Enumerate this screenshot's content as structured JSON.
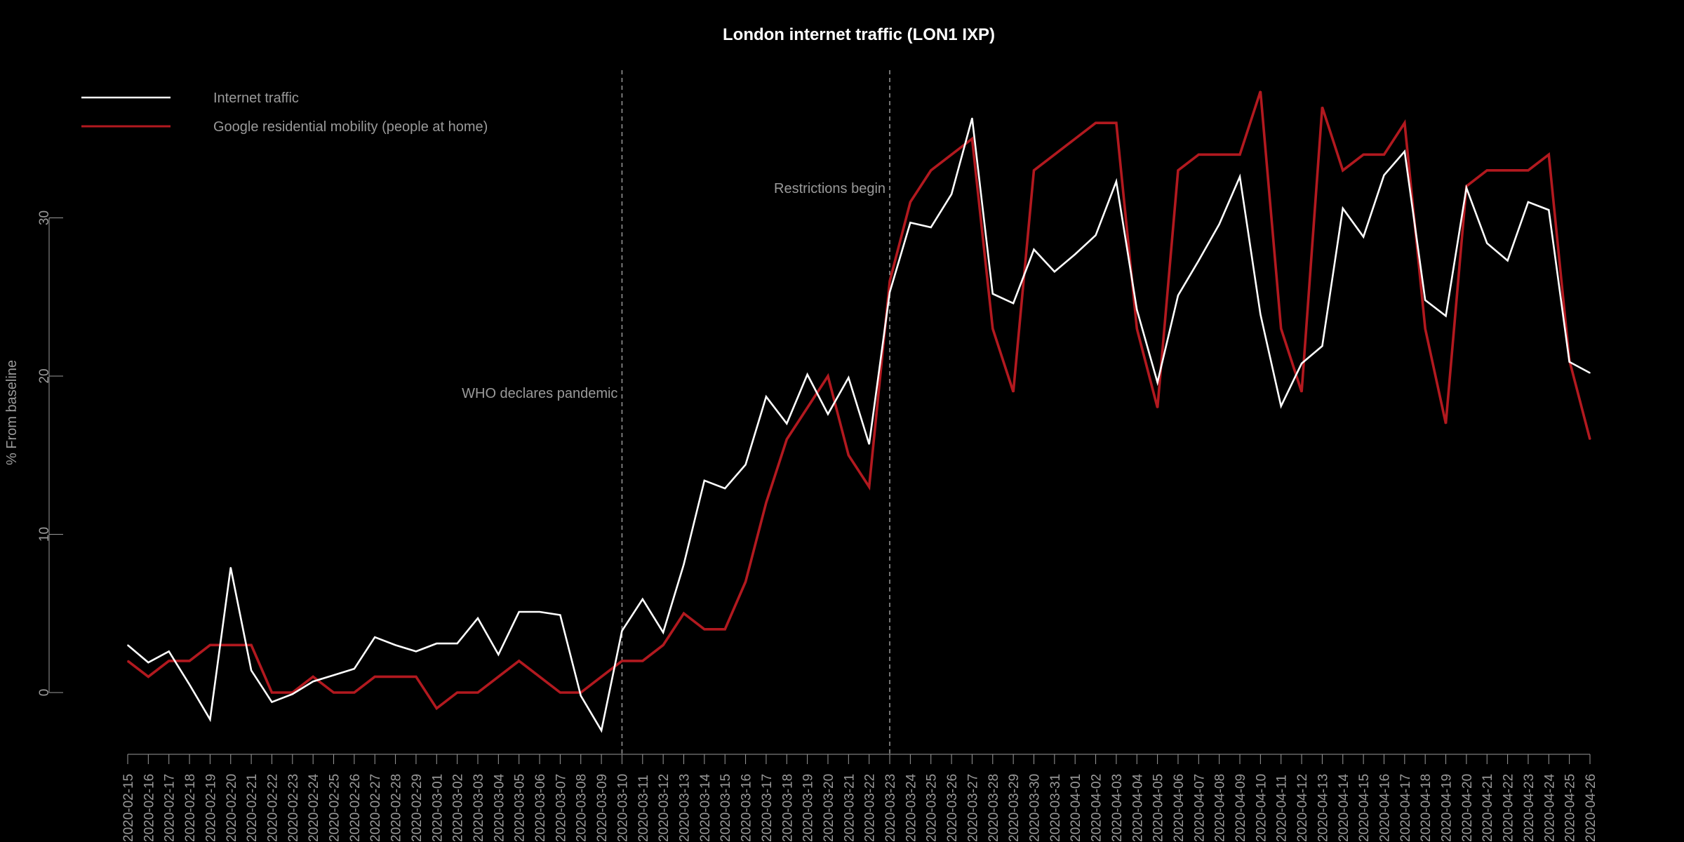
{
  "chart_data": {
    "type": "line",
    "title": "London internet traffic (LON1 IXP)",
    "xlabel": "",
    "ylabel": "% From baseline",
    "ylim": [
      -4.5,
      39
    ],
    "yticks": [
      0,
      10,
      20,
      30
    ],
    "grid": false,
    "legend_position": "top-left",
    "categories": [
      "2020-02-15",
      "2020-02-16",
      "2020-02-17",
      "2020-02-18",
      "2020-02-19",
      "2020-02-20",
      "2020-02-21",
      "2020-02-22",
      "2020-02-23",
      "2020-02-24",
      "2020-02-25",
      "2020-02-26",
      "2020-02-27",
      "2020-02-28",
      "2020-02-29",
      "2020-03-01",
      "2020-03-02",
      "2020-03-03",
      "2020-03-04",
      "2020-03-05",
      "2020-03-06",
      "2020-03-07",
      "2020-03-08",
      "2020-03-09",
      "2020-03-10",
      "2020-03-11",
      "2020-03-12",
      "2020-03-13",
      "2020-03-14",
      "2020-03-15",
      "2020-03-16",
      "2020-03-17",
      "2020-03-18",
      "2020-03-19",
      "2020-03-20",
      "2020-03-21",
      "2020-03-22",
      "2020-03-23",
      "2020-03-24",
      "2020-03-25",
      "2020-03-26",
      "2020-03-27",
      "2020-03-28",
      "2020-03-29",
      "2020-03-30",
      "2020-03-31",
      "2020-04-01",
      "2020-04-02",
      "2020-04-03",
      "2020-04-04",
      "2020-04-05",
      "2020-04-06",
      "2020-04-07",
      "2020-04-08",
      "2020-04-09",
      "2020-04-10",
      "2020-04-11",
      "2020-04-12",
      "2020-04-13",
      "2020-04-14",
      "2020-04-15",
      "2020-04-16",
      "2020-04-17",
      "2020-04-18",
      "2020-04-19",
      "2020-04-20",
      "2020-04-21",
      "2020-04-22",
      "2020-04-23",
      "2020-04-24",
      "2020-04-25",
      "2020-04-26"
    ],
    "series": [
      {
        "name": "Internet traffic",
        "color": "#ffffff",
        "values": [
          3.0,
          1.9,
          2.6,
          0.5,
          -1.7,
          7.9,
          1.4,
          -0.6,
          -0.1,
          0.7,
          1.1,
          1.5,
          3.5,
          3.0,
          2.6,
          3.1,
          3.1,
          4.7,
          2.4,
          5.1,
          5.1,
          4.9,
          -0.2,
          -2.4,
          3.9,
          5.9,
          3.8,
          8.1,
          13.4,
          12.9,
          14.4,
          18.7,
          17.0,
          20.1,
          17.6,
          19.9,
          15.7,
          25.3,
          29.7,
          29.4,
          31.5,
          36.3,
          25.2,
          24.6,
          28.0,
          26.6,
          27.7,
          28.9,
          32.3,
          24.2,
          19.6,
          25.1,
          27.3,
          29.6,
          32.6,
          23.9,
          18.1,
          20.8,
          21.9,
          30.6,
          28.8,
          32.7,
          34.2,
          24.8,
          23.8,
          31.9,
          28.4,
          27.3,
          31.0,
          30.5,
          20.9,
          20.2
        ]
      },
      {
        "name": "Google residential mobility (people at home)",
        "color": "#b2191f",
        "values": [
          2,
          1,
          2,
          2,
          3,
          3,
          3,
          0,
          0,
          1,
          0,
          0,
          1,
          1,
          1,
          -1,
          0,
          0,
          1,
          2,
          1,
          0,
          0,
          1,
          2,
          2,
          3,
          5,
          4,
          4,
          7,
          12,
          16,
          18,
          20,
          15,
          13,
          26,
          31,
          33,
          34,
          35,
          23,
          19,
          33,
          34,
          35,
          36,
          36,
          23,
          18,
          33,
          34,
          34,
          34,
          38,
          23,
          19,
          37,
          33,
          34,
          34,
          36,
          23,
          17,
          32,
          33,
          33,
          33,
          34,
          21,
          16
        ]
      }
    ],
    "annotations": [
      {
        "label": "WHO declares pandemic",
        "x": "2020-03-10"
      },
      {
        "label": "Restrictions begin",
        "x": "2020-03-23"
      }
    ]
  }
}
